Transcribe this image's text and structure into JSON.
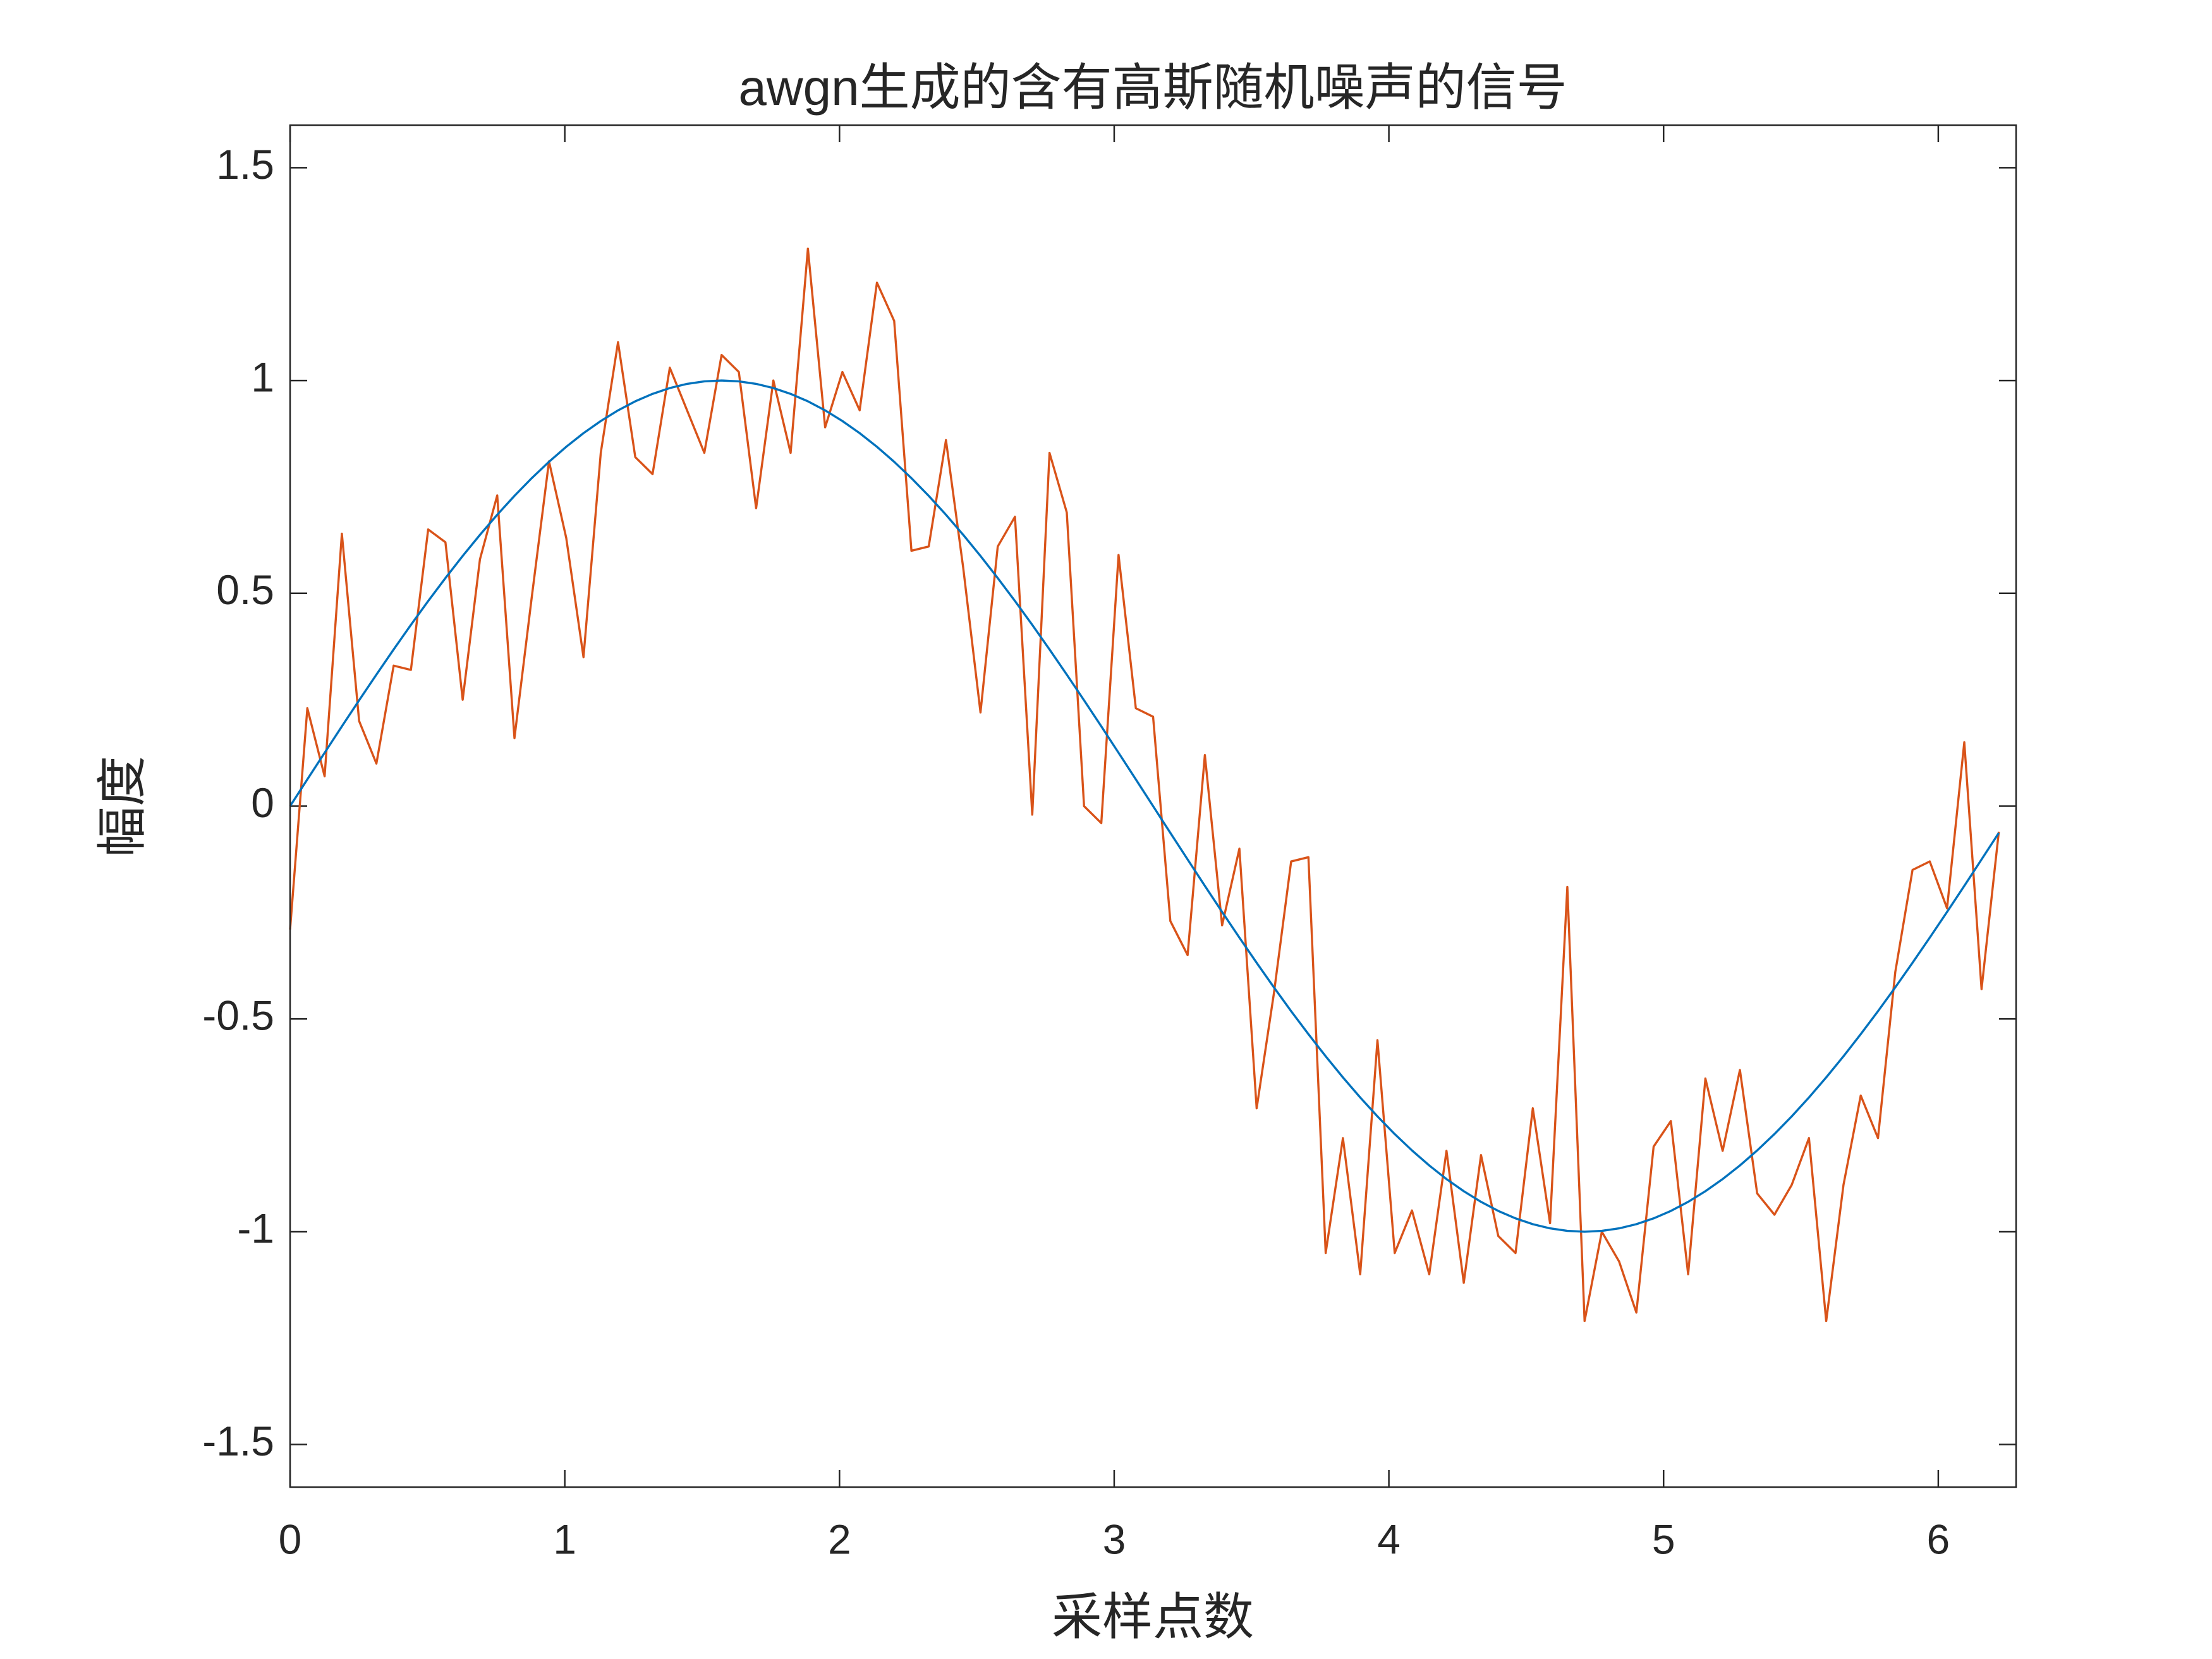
{
  "chart_data": {
    "type": "line",
    "title": "awgn生成的含有高斯随机噪声的信号",
    "x_label": "采样点数",
    "y_label": "幅度",
    "x": [
      0,
      0.0628,
      0.1257,
      0.1885,
      0.2513,
      0.3142,
      0.377,
      0.4398,
      0.5027,
      0.5655,
      0.6283,
      0.6912,
      0.754,
      0.8168,
      0.8796,
      0.9425,
      1.0053,
      1.0681,
      1.131,
      1.1938,
      1.2566,
      1.3195,
      1.3823,
      1.4451,
      1.508,
      1.5708,
      1.6336,
      1.6965,
      1.7593,
      1.8221,
      1.885,
      1.9478,
      2.0106,
      2.0735,
      2.1363,
      2.1991,
      2.2619,
      2.3248,
      2.3876,
      2.4504,
      2.5133,
      2.5761,
      2.6389,
      2.7018,
      2.7646,
      2.8274,
      2.8903,
      2.9531,
      3.0159,
      3.0788,
      3.1416,
      3.2044,
      3.2673,
      3.3301,
      3.3929,
      3.4558,
      3.5186,
      3.5814,
      3.6442,
      3.7071,
      3.7699,
      3.8327,
      3.8956,
      3.9584,
      4.0212,
      4.0841,
      4.1469,
      4.2097,
      4.2726,
      4.3354,
      4.3982,
      4.4611,
      4.5239,
      4.5867,
      4.6496,
      4.7124,
      4.7752,
      4.8381,
      4.9009,
      4.9637,
      5.0265,
      5.0894,
      5.1522,
      5.215,
      5.2779,
      5.3407,
      5.4035,
      5.4664,
      5.5292,
      5.592,
      5.6549,
      5.7177,
      5.7805,
      5.8434,
      5.9062,
      5.969,
      6.0319,
      6.0947,
      6.1575,
      6.2204
    ],
    "series": [
      {
        "color": "#0072bd",
        "values": [
          0,
          0.0628,
          0.1253,
          0.1874,
          0.2487,
          0.309,
          0.3681,
          0.4258,
          0.4818,
          0.5358,
          0.5878,
          0.6374,
          0.6845,
          0.729,
          0.7705,
          0.809,
          0.8443,
          0.8763,
          0.9048,
          0.9298,
          0.9511,
          0.9686,
          0.9823,
          0.9921,
          0.998,
          1,
          0.998,
          0.9921,
          0.9823,
          0.9686,
          0.9511,
          0.9298,
          0.9048,
          0.8763,
          0.8443,
          0.809,
          0.7705,
          0.729,
          0.6845,
          0.6374,
          0.5878,
          0.5358,
          0.4818,
          0.4258,
          0.3681,
          0.309,
          0.2487,
          0.1874,
          0.1253,
          0.0628,
          0,
          -0.0628,
          -0.1253,
          -0.1874,
          -0.2487,
          -0.309,
          -0.3681,
          -0.4258,
          -0.4818,
          -0.5358,
          -0.5878,
          -0.6374,
          -0.6845,
          -0.729,
          -0.7705,
          -0.809,
          -0.8443,
          -0.8763,
          -0.9048,
          -0.9298,
          -0.9511,
          -0.9686,
          -0.9823,
          -0.9921,
          -0.998,
          -1,
          -0.998,
          -0.9921,
          -0.9823,
          -0.9686,
          -0.9511,
          -0.9298,
          -0.9048,
          -0.8763,
          -0.8443,
          -0.809,
          -0.7705,
          -0.729,
          -0.6845,
          -0.6374,
          -0.5878,
          -0.5358,
          -0.4818,
          -0.4258,
          -0.3681,
          -0.309,
          -0.2487,
          -0.1874,
          -0.1253,
          -0.0628
        ]
      },
      {
        "color": "#d95319",
        "values": [
          -0.29,
          0.23,
          0.07,
          0.64,
          0.2,
          0.1,
          0.33,
          0.32,
          0.65,
          0.62,
          0.25,
          0.58,
          0.73,
          0.16,
          0.49,
          0.81,
          0.63,
          0.35,
          0.83,
          1.09,
          0.82,
          0.78,
          1.03,
          0.93,
          0.83,
          1.06,
          1.02,
          0.7,
          1.0,
          0.83,
          1.31,
          0.89,
          1.02,
          0.93,
          1.23,
          1.14,
          0.6,
          0.61,
          0.86,
          0.56,
          0.22,
          0.61,
          0.68,
          -0.02,
          0.83,
          0.69,
          0.0,
          -0.04,
          0.59,
          0.23,
          0.21,
          -0.27,
          -0.35,
          0.12,
          -0.28,
          -0.1,
          -0.71,
          -0.44,
          -0.13,
          -0.12,
          -1.05,
          -0.78,
          -1.1,
          -0.55,
          -1.05,
          -0.95,
          -1.1,
          -0.81,
          -1.12,
          -0.82,
          -1.01,
          -1.05,
          -0.71,
          -0.98,
          -0.19,
          -1.21,
          -1.0,
          -1.07,
          -1.19,
          -0.8,
          -0.74,
          -1.1,
          -0.64,
          -0.81,
          -0.62,
          -0.91,
          -0.96,
          -0.89,
          -0.78,
          -1.21,
          -0.89,
          -0.68,
          -0.78,
          -0.39,
          -0.15,
          -0.13,
          -0.24,
          0.15,
          -0.43,
          -0.06
        ]
      }
    ],
    "xlim": [
      0,
      6.2832
    ],
    "xticks": [
      0,
      1,
      2,
      3,
      4,
      5,
      6
    ],
    "ylim": [
      -1.6,
      1.6
    ],
    "yticks": [
      -1.5,
      -1,
      -0.5,
      0,
      0.5,
      1,
      1.5
    ],
    "grid": false,
    "box": true
  }
}
